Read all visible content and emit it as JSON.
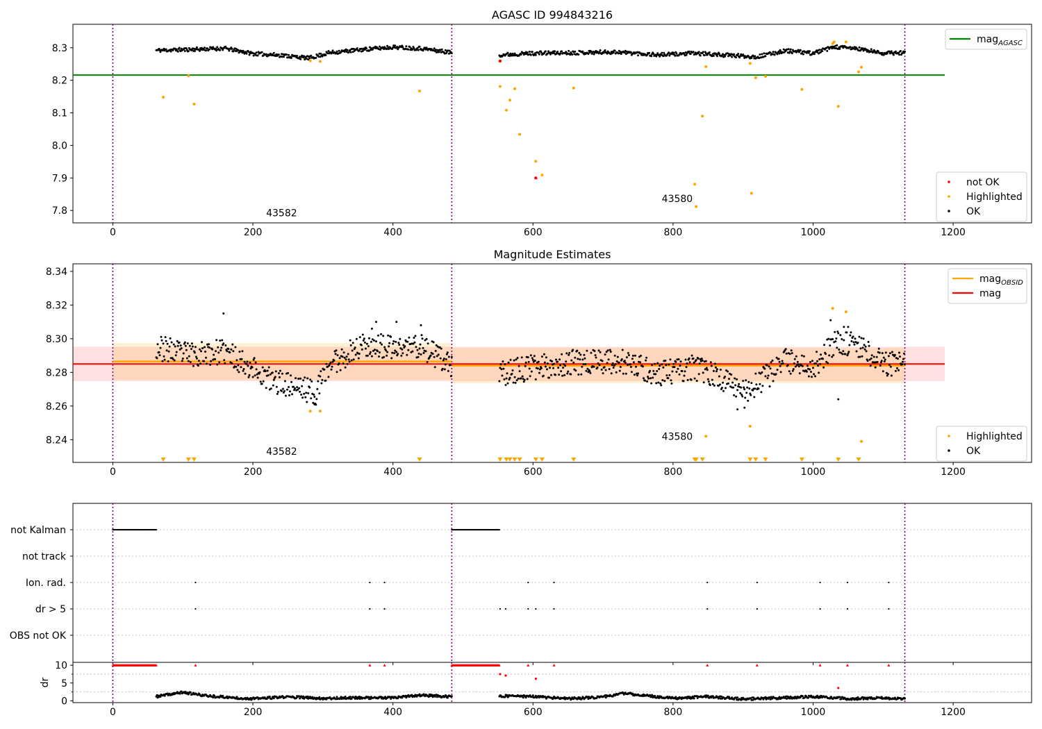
{
  "chart_data": [
    {
      "id": "agasc",
      "type": "scatter",
      "title": "AGASC ID 994843216",
      "xlim": [
        -57,
        1312
      ],
      "ylim": [
        7.762,
        8.372
      ],
      "xticks": [
        0,
        200,
        400,
        600,
        800,
        1000,
        1200
      ],
      "yticks": [
        7.8,
        7.9,
        8.0,
        8.1,
        8.2,
        8.3
      ],
      "ytick_labels": [
        "7.8",
        "7.9",
        "8.0",
        "8.1",
        "8.2",
        "8.3"
      ],
      "obs_boundaries": [
        0,
        484,
        1131
      ],
      "obsid_labels": [
        {
          "text": "43582",
          "x": 241,
          "y": 7.782
        },
        {
          "text": "43580",
          "x": 806,
          "y": 7.826
        }
      ],
      "legend_top": [
        {
          "label": "mag",
          "sub": "AGASC",
          "color": "#008000"
        }
      ],
      "legend_bottom": [
        {
          "label": "not OK",
          "color": "#ff0000"
        },
        {
          "label": "Highlighted",
          "color": "#ffa500"
        },
        {
          "label": "OK",
          "color": "#000000"
        }
      ],
      "hline": {
        "y": 8.216,
        "x": [
          -57,
          1188
        ],
        "color": "#008000"
      },
      "ok_segments": [
        [
          62,
          484,
          [
            [
              62,
              8.292
            ],
            [
              100,
              8.294
            ],
            [
              160,
              8.298
            ],
            [
              200,
              8.282
            ],
            [
              240,
              8.277
            ],
            [
              280,
              8.268
            ],
            [
              310,
              8.285
            ],
            [
              360,
              8.295
            ],
            [
              400,
              8.302
            ],
            [
              440,
              8.298
            ],
            [
              484,
              8.285
            ]
          ]
        ],
        [
          552,
          1131,
          [
            [
              552,
              8.278
            ],
            [
              600,
              8.283
            ],
            [
              660,
              8.285
            ],
            [
              720,
              8.287
            ],
            [
              780,
              8.278
            ],
            [
              830,
              8.283
            ],
            [
              870,
              8.278
            ],
            [
              920,
              8.272
            ],
            [
              960,
              8.291
            ],
            [
              1000,
              8.283
            ],
            [
              1030,
              8.302
            ],
            [
              1060,
              8.298
            ],
            [
              1100,
              8.283
            ],
            [
              1131,
              8.285
            ]
          ]
        ]
      ],
      "highlighted": [
        [
          72,
          8.148
        ],
        [
          108,
          8.214
        ],
        [
          116,
          8.127
        ],
        [
          282,
          8.26
        ],
        [
          296,
          8.258
        ],
        [
          438,
          8.167
        ],
        [
          553,
          8.181
        ],
        [
          562,
          8.108
        ],
        [
          567,
          8.139
        ],
        [
          574,
          8.174
        ],
        [
          581,
          8.034
        ],
        [
          604,
          7.951
        ],
        [
          613,
          7.909
        ],
        [
          658,
          8.176
        ],
        [
          831,
          7.881
        ],
        [
          833,
          7.812
        ],
        [
          842,
          8.09
        ],
        [
          847,
          8.242
        ],
        [
          910,
          8.252
        ],
        [
          912,
          7.853
        ],
        [
          918,
          8.208
        ],
        [
          932,
          8.212
        ],
        [
          984,
          8.172
        ],
        [
          1028,
          8.313
        ],
        [
          1030,
          8.318
        ],
        [
          1036,
          8.12
        ],
        [
          1047,
          8.318
        ],
        [
          1065,
          8.226
        ],
        [
          1069,
          8.24
        ]
      ],
      "not_ok": [
        [
          553,
          8.259
        ],
        [
          604,
          7.9
        ]
      ]
    },
    {
      "id": "estimates",
      "type": "scatter",
      "title": "Magnitude Estimates",
      "xlim": [
        -57,
        1312
      ],
      "ylim": [
        8.2265,
        8.3445
      ],
      "xticks": [
        0,
        200,
        400,
        600,
        800,
        1000,
        1200
      ],
      "yticks": [
        8.24,
        8.26,
        8.28,
        8.3,
        8.32,
        8.34
      ],
      "ytick_labels": [
        "8.24",
        "8.26",
        "8.28",
        "8.30",
        "8.32",
        "8.34"
      ],
      "obs_boundaries": [
        0,
        484,
        1131
      ],
      "obsid_labels": [
        {
          "text": "43582",
          "x": 241,
          "y": 8.231
        },
        {
          "text": "43580",
          "x": 806,
          "y": 8.24
        }
      ],
      "legend_top": [
        {
          "label": "mag",
          "sub": "OBSID",
          "color": "#ffa500"
        },
        {
          "label": "mag",
          "sub": "",
          "color": "#ff0000"
        }
      ],
      "legend_bottom": [
        {
          "label": "Highlighted",
          "color": "#ffa500"
        },
        {
          "label": "OK",
          "color": "#000000"
        }
      ],
      "mag": {
        "value": 8.285,
        "band": [
          8.2748,
          8.2952
        ],
        "x": [
          -57,
          1188
        ]
      },
      "obsid_mags": [
        {
          "x": [
            0,
            484
          ],
          "value": 8.2865,
          "band": [
            8.2755,
            8.2975
          ]
        },
        {
          "x": [
            484,
            1131
          ],
          "value": 8.284,
          "band": [
            8.2735,
            8.2945
          ]
        }
      ],
      "ok_segments": [
        [
          62,
          484,
          [
            [
              62,
              8.295
            ],
            [
              100,
              8.291
            ],
            [
              160,
              8.292
            ],
            [
              200,
              8.283
            ],
            [
              220,
              8.276
            ],
            [
              260,
              8.272
            ],
            [
              290,
              8.268
            ],
            [
              310,
              8.285
            ],
            [
              360,
              8.297
            ],
            [
              400,
              8.294
            ],
            [
              440,
              8.296
            ],
            [
              484,
              8.283
            ]
          ]
        ],
        [
          552,
          1131,
          [
            [
              552,
              8.279
            ],
            [
              600,
              8.283
            ],
            [
              660,
              8.286
            ],
            [
              720,
              8.287
            ],
            [
              780,
              8.279
            ],
            [
              830,
              8.283
            ],
            [
              870,
              8.276
            ],
            [
              910,
              8.269
            ],
            [
              960,
              8.287
            ],
            [
              1000,
              8.283
            ],
            [
              1030,
              8.297
            ],
            [
              1060,
              8.298
            ],
            [
              1100,
              8.285
            ],
            [
              1131,
              8.286
            ]
          ]
        ]
      ],
      "extremes": [
        [
          158,
          8.315
        ],
        [
          370,
          8.306
        ],
        [
          376,
          8.31
        ],
        [
          405,
          8.31
        ],
        [
          440,
          8.308
        ],
        [
          1025,
          8.311
        ],
        [
          1036,
          8.264
        ],
        [
          1044,
          8.307
        ],
        [
          1050,
          8.307
        ],
        [
          288,
          8.261
        ],
        [
          892,
          8.258
        ],
        [
          902,
          8.259
        ]
      ],
      "highlighted": [
        [
          282,
          8.257
        ],
        [
          296,
          8.257
        ],
        [
          910,
          8.248
        ],
        [
          1028,
          8.318
        ],
        [
          1047,
          8.316
        ],
        [
          847,
          8.242
        ],
        [
          1069,
          8.239
        ]
      ],
      "highlighted_offscale_x": [
        72,
        108,
        116,
        438,
        553,
        562,
        567,
        574,
        581,
        604,
        613,
        658,
        831,
        833,
        842,
        910,
        918,
        932,
        984,
        1036,
        1065
      ]
    },
    {
      "id": "flags",
      "type": "scatter",
      "xlim": [
        -57,
        1312
      ],
      "xticks": [
        0,
        200,
        400,
        600,
        800,
        1000,
        1200
      ],
      "categories": [
        "not Kalman",
        "not track",
        "Ion. rad.",
        "dr > 5",
        "OBS not OK"
      ],
      "obs_boundaries": [
        0,
        484,
        1131
      ],
      "not_kalman": [
        [
          0,
          62
        ],
        [
          484,
          552
        ]
      ],
      "ion_rad": [
        118,
        367,
        388,
        593,
        630,
        849,
        920,
        1010,
        1049,
        1108
      ],
      "dr_gt_5": [
        118,
        367,
        388,
        553,
        561,
        593,
        604,
        630,
        849,
        920,
        1010,
        1049,
        1108
      ]
    },
    {
      "id": "dr",
      "type": "scatter",
      "ylabel": "dr",
      "xlim": [
        -57,
        1312
      ],
      "ylim": [
        -0.5,
        10.8
      ],
      "yticks": [
        0,
        5,
        10
      ],
      "ytick_labels": [
        "0",
        "5",
        "10"
      ],
      "xticks": [
        0,
        200,
        400,
        600,
        800,
        1000,
        1200
      ],
      "xtick_labels": [
        "0",
        "200",
        "400",
        "600",
        "800",
        "1000",
        "1200"
      ],
      "obs_boundaries": [
        0,
        484,
        1131
      ],
      "capped_value": 10,
      "capped_ranges": [
        [
          0,
          62
        ],
        [
          484,
          552
        ]
      ],
      "capped_points": [
        118,
        367,
        388,
        593,
        630,
        849,
        920,
        1010,
        1049,
        1108
      ],
      "red_points": [
        [
          553,
          7.5
        ],
        [
          561,
          7.1
        ],
        [
          604,
          6.2
        ],
        [
          1036,
          3.6
        ]
      ],
      "ok_segments": [
        [
          62,
          484,
          [
            [
              62,
              1.2
            ],
            [
              100,
              2.4
            ],
            [
              130,
              1.5
            ],
            [
              170,
              0.9
            ],
            [
              200,
              0.6
            ],
            [
              250,
              1.1
            ],
            [
              300,
              0.7
            ],
            [
              350,
              0.9
            ],
            [
              400,
              0.8
            ],
            [
              440,
              1.6
            ],
            [
              484,
              1.1
            ]
          ]
        ],
        [
          552,
          1131,
          [
            [
              552,
              1.4
            ],
            [
              600,
              1.2
            ],
            [
              650,
              0.6
            ],
            [
              700,
              1.1
            ],
            [
              730,
              2.1
            ],
            [
              760,
              1.5
            ],
            [
              800,
              0.7
            ],
            [
              850,
              1.2
            ],
            [
              900,
              0.5
            ],
            [
              950,
              0.8
            ],
            [
              1000,
              1.2
            ],
            [
              1050,
              0.6
            ],
            [
              1100,
              0.8
            ],
            [
              1131,
              0.5
            ]
          ]
        ]
      ]
    }
  ]
}
